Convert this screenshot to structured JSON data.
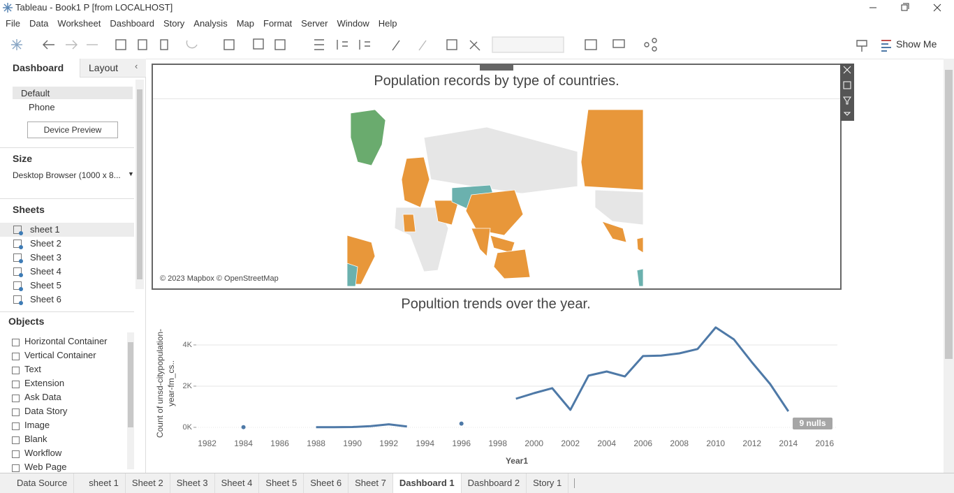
{
  "window": {
    "title": "Tableau - Book1 P [from LOCALHOST]"
  },
  "menu": [
    "File",
    "Data",
    "Worksheet",
    "Dashboard",
    "Story",
    "Analysis",
    "Map",
    "Format",
    "Server",
    "Window",
    "Help"
  ],
  "toolbar": {
    "show_me": "Show Me"
  },
  "left_pane": {
    "tabs": [
      "Dashboard",
      "Layout"
    ],
    "devices": [
      "Default",
      "Phone"
    ],
    "device_preview": "Device Preview",
    "size_heading": "Size",
    "size_value": "Desktop Browser (1000 x 8...",
    "sheets_heading": "Sheets",
    "sheets": [
      "sheet 1",
      "Sheet 2",
      "Sheet 3",
      "Sheet 4",
      "Sheet 5",
      "Sheet 6"
    ],
    "objects_heading": "Objects",
    "objects": [
      "Horizontal Container",
      "Vertical Container",
      "Text",
      "Extension",
      "Ask Data",
      "Data Story",
      "Image",
      "Blank",
      "Workflow",
      "Web Page"
    ]
  },
  "map": {
    "title": "Population records by type of countries.",
    "attribution": "© 2023 Mapbox © OpenStreetMap"
  },
  "chart_data": {
    "type": "line",
    "title": "Popultion trends over the year.",
    "x_label": "Year1",
    "y_label": "Count of unsd-citypopulation-year-fm_cs..",
    "x": [
      1984,
      1985,
      1986,
      1987,
      1988,
      1989,
      1990,
      1991,
      1992,
      1993,
      1994,
      1995,
      1996,
      1997,
      1998,
      1999,
      2000,
      2001,
      2002,
      2003,
      2004,
      2005,
      2006,
      2007,
      2008,
      2009,
      2010,
      2011,
      2012,
      2013,
      2014
    ],
    "values": [
      10,
      null,
      null,
      null,
      10,
      10,
      15,
      60,
      150,
      40,
      null,
      null,
      180,
      null,
      null,
      1390,
      1660,
      1900,
      850,
      2510,
      2710,
      2470,
      3460,
      3480,
      3590,
      3800,
      4850,
      4270,
      3150,
      2100,
      780
    ],
    "color": "#4e79a7",
    "xlim": [
      1981.4,
      2016.7
    ],
    "xticks": [
      1982,
      1984,
      1986,
      1988,
      1990,
      1992,
      1994,
      1996,
      1998,
      2000,
      2002,
      2004,
      2006,
      2008,
      2010,
      2012,
      2014,
      2016
    ],
    "ylim": [
      -170,
      5150
    ],
    "yticks": [
      {
        "value": 0,
        "label": "0K"
      },
      {
        "value": 2000,
        "label": "2K"
      },
      {
        "value": 4000,
        "label": "4K"
      }
    ],
    "grid": true,
    "null_indicator": "9 nulls"
  },
  "tabs": [
    "Data Source",
    "sheet 1",
    "Sheet 2",
    "Sheet 3",
    "Sheet 4",
    "Sheet 5",
    "Sheet 6",
    "Sheet 7",
    "Dashboard 1",
    "Dashboard 2",
    "Story 1"
  ]
}
